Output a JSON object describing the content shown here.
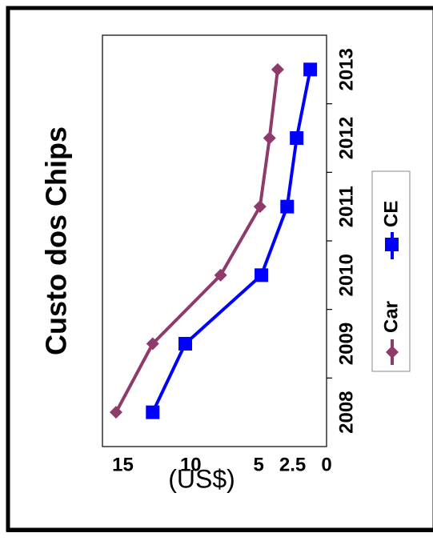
{
  "chart_data": {
    "type": "line",
    "title": "Custo dos Chips",
    "ylabel": "(US$)",
    "xlabel": "",
    "categories": [
      "2008",
      "2009",
      "2010",
      "2011",
      "2012",
      "2013"
    ],
    "y_ticks": [
      "0",
      "2.5",
      "5",
      "10",
      "15"
    ],
    "y_tick_values": [
      0,
      2.5,
      5,
      10,
      15
    ],
    "ylim": [
      0,
      16.5
    ],
    "grid": false,
    "orientation": "rotated 90° counter-clockwise",
    "legend_position": "bottom",
    "series": [
      {
        "name": "Car",
        "color": "#8e3a6a",
        "marker": "diamond",
        "values": [
          15.5,
          12.8,
          7.8,
          4.9,
          4.2,
          3.6
        ]
      },
      {
        "name": "CE",
        "color": "#0000ff",
        "marker": "square",
        "values": [
          12.8,
          10.4,
          4.8,
          2.9,
          2.2,
          1.2
        ]
      }
    ]
  }
}
